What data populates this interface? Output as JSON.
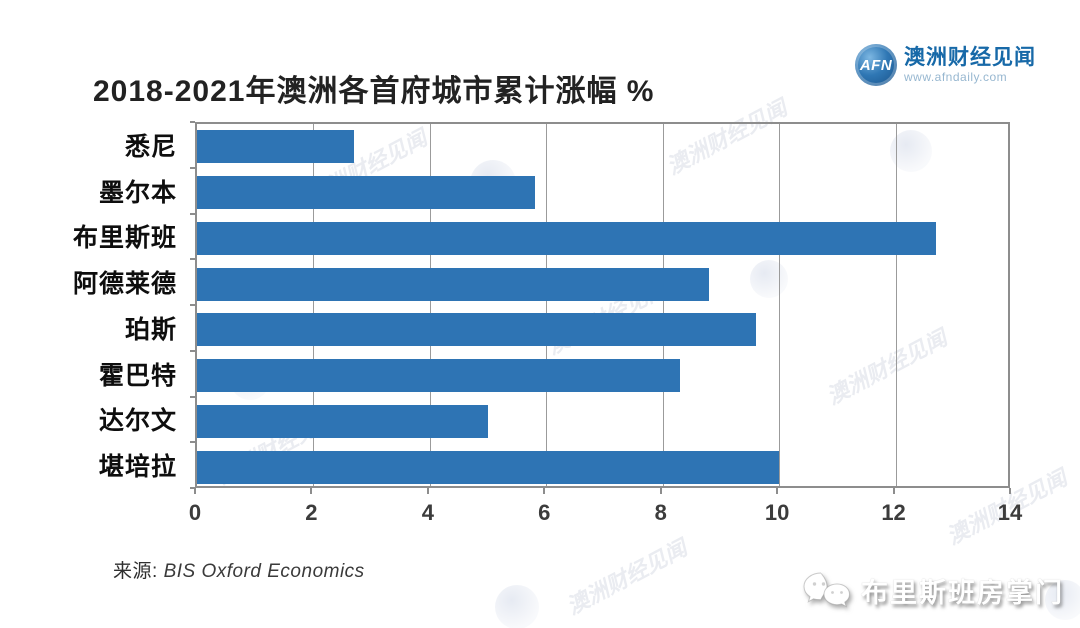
{
  "title": "2018-2021年澳洲各首府城市累计涨幅 %",
  "logo": {
    "abbr": "AFN",
    "name": "澳洲财经见闻",
    "url": "www.afndaily.com"
  },
  "chart_data": {
    "type": "bar",
    "orientation": "horizontal",
    "title": "2018-2021年澳洲各首府城市累计涨幅 %",
    "categories": [
      "悉尼",
      "墨尔本",
      "布里斯班",
      "阿德莱德",
      "珀斯",
      "霍巴特",
      "达尔文",
      "堪培拉"
    ],
    "values": [
      2.7,
      5.8,
      12.7,
      8.8,
      9.6,
      8.3,
      5.0,
      10.0
    ],
    "xlabel": "",
    "ylabel": "",
    "xlim": [
      0,
      14
    ],
    "xticks": [
      0,
      2,
      4,
      6,
      8,
      10,
      12,
      14
    ],
    "grid": true,
    "legend": false,
    "bar_color": "#2e74b4"
  },
  "source": {
    "label": "来源:",
    "text": "BIS Oxford Economics"
  },
  "branding": {
    "name": "布里斯班房掌门"
  },
  "watermark": {
    "text": "澳洲财经见闻"
  },
  "colors": {
    "bar": "#2e74b4",
    "plot_border": "#8d8d8d",
    "gridline": "#9b9b9b",
    "logo_blue": "#1769a8"
  }
}
